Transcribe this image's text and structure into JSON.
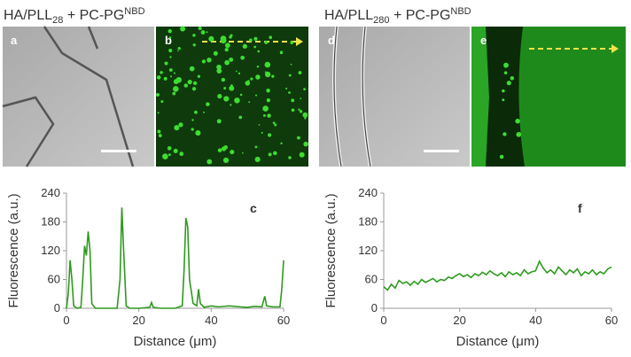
{
  "headings": [
    {
      "base": "HA/PLL",
      "sub": "28",
      "mid": " + PC-PG",
      "sup": "NBD"
    },
    {
      "base": "HA/PLL",
      "sub": "280",
      "mid": " + PC-PG",
      "sup": "NBD"
    }
  ],
  "panel_letters": [
    "a",
    "b",
    "d",
    "e"
  ],
  "chart_data": [
    {
      "type": "line",
      "annotation": "c",
      "xlabel": "Distance (μm)",
      "ylabel": "Fluorescence (a.u.)",
      "x": [
        0,
        0.5,
        1,
        1.5,
        2,
        3,
        4,
        4.5,
        5,
        5.5,
        6,
        6.5,
        7,
        8,
        10,
        12,
        14,
        14.8,
        15.3,
        15.8,
        16.5,
        17.5,
        20,
        23,
        23.5,
        24,
        26,
        30,
        32,
        32.5,
        33,
        33.5,
        34,
        35,
        36,
        36.5,
        37,
        38,
        40,
        42,
        45,
        48,
        50,
        52,
        54,
        54.8,
        55.3,
        57,
        59,
        59.5,
        60
      ],
      "series": [
        {
          "color": "#2e9a1e",
          "values": [
            0,
            30,
            100,
            60,
            5,
            0,
            2,
            60,
            130,
            110,
            160,
            120,
            10,
            0,
            0,
            0,
            0,
            60,
            210,
            120,
            5,
            0,
            0,
            2,
            12,
            2,
            0,
            0,
            5,
            80,
            188,
            170,
            60,
            10,
            5,
            40,
            10,
            2,
            5,
            3,
            5,
            3,
            2,
            4,
            3,
            25,
            5,
            3,
            3,
            40,
            100
          ]
        }
      ],
      "xlim": [
        0,
        60
      ],
      "ylim": [
        0,
        240
      ],
      "xticks": [
        0,
        20,
        40,
        60
      ],
      "yticks": [
        0,
        60,
        120,
        180,
        240
      ]
    },
    {
      "type": "line",
      "annotation": "f",
      "xlabel": "Distance (μm)",
      "ylabel": "Fluorescence (a.u.)",
      "x": [
        0,
        1,
        2,
        3,
        4,
        5,
        6,
        7,
        8,
        9,
        10,
        11,
        12,
        13,
        14,
        15,
        16,
        17,
        18,
        19,
        20,
        21,
        22,
        23,
        24,
        25,
        26,
        27,
        28,
        29,
        30,
        31,
        32,
        33,
        34,
        35,
        36,
        37,
        38,
        39,
        40,
        41,
        42,
        43,
        44,
        45,
        46,
        47,
        48,
        49,
        50,
        51,
        52,
        53,
        54,
        55,
        56,
        57,
        58,
        59,
        60
      ],
      "series": [
        {
          "color": "#2e9a1e",
          "values": [
            45,
            38,
            50,
            42,
            58,
            52,
            55,
            48,
            56,
            50,
            60,
            54,
            58,
            62,
            55,
            60,
            58,
            65,
            62,
            68,
            72,
            66,
            70,
            64,
            72,
            68,
            75,
            70,
            78,
            72,
            68,
            74,
            66,
            76,
            70,
            74,
            68,
            80,
            72,
            76,
            78,
            98,
            84,
            74,
            80,
            72,
            86,
            78,
            70,
            80,
            74,
            82,
            68,
            76,
            72,
            80,
            70,
            76,
            72,
            82,
            86
          ]
        }
      ],
      "xlim": [
        0,
        60
      ],
      "ylim": [
        0,
        240
      ],
      "xticks": [
        0,
        20,
        40,
        60
      ],
      "yticks": [
        0,
        60,
        120,
        180,
        240
      ]
    }
  ]
}
